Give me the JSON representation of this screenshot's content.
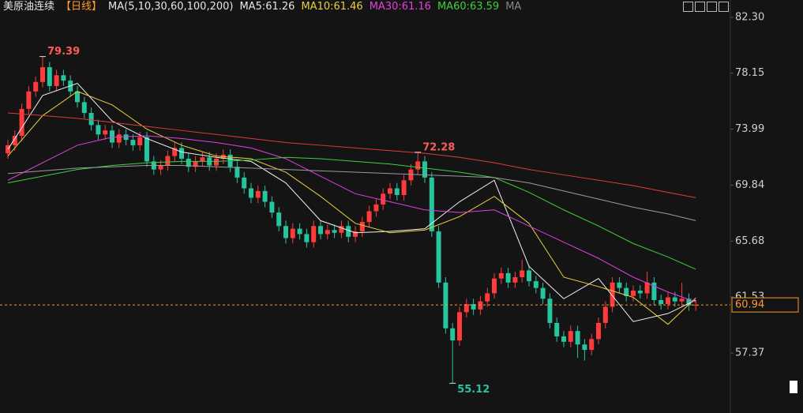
{
  "chart_data": {
    "type": "candlestick",
    "header": [
      "美原油连续",
      "【日线】",
      "MA(5,10,30,60,100,200)",
      "MA5:61.26",
      "MA10:61.46",
      "MA30:61.16",
      "MA60:63.59",
      "MA"
    ],
    "header_colors": [
      "#e6e6e6",
      "#ff9a2e",
      "#e6e6e6",
      "#e6e6e6",
      "#e8d23a",
      "#e040e0",
      "#3ecf3e",
      "#888888"
    ],
    "ylim": [
      52.91,
      83.59
    ],
    "yticks": [
      {
        "value": 82.3,
        "label": "82.30"
      },
      78.15,
      73.99,
      69.84,
      65.68,
      61.53,
      57.37
    ],
    "up_color": "#ff3b3b",
    "down_color": "#27c4a0",
    "open": [
      72.2,
      72.8,
      73.5,
      75.5,
      76.8,
      77.5,
      78.6,
      77.2,
      78.0,
      77.6,
      76.8,
      76.0,
      75.2,
      74.3,
      73.6,
      73.9,
      73.0,
      73.6,
      73.2,
      72.8,
      73.4,
      71.6,
      71.0,
      71.3,
      72.0,
      72.6,
      71.8,
      71.2,
      71.6,
      71.9,
      71.3,
      71.8,
      72.1,
      71.2,
      70.4,
      69.6,
      68.9,
      69.4,
      68.6,
      67.8,
      66.8,
      65.9,
      66.6,
      66.2,
      65.6,
      66.8,
      66.2,
      66.5,
      66.3,
      66.8,
      66.0,
      66.4,
      67.1,
      67.9,
      68.4,
      69.2,
      69.6,
      69.1,
      70.2,
      71.0,
      71.6,
      70.4,
      66.4,
      62.6,
      59.2,
      58.3,
      60.4,
      61.0,
      60.6,
      61.2,
      61.8,
      62.9,
      63.3,
      62.6,
      63.0,
      63.5,
      62.7,
      62.2,
      61.4,
      59.6,
      58.6,
      58.2,
      59.0,
      58.0,
      57.6,
      58.4,
      59.6,
      60.8,
      62.6,
      62.2,
      61.6,
      62.0,
      61.8,
      62.6,
      61.3,
      61.0,
      61.5,
      61.2,
      61.4,
      60.9
    ],
    "high": [
      73.2,
      73.9,
      75.9,
      77.2,
      77.9,
      79.39,
      79.0,
      78.4,
      78.4,
      78.0,
      77.2,
      76.4,
      75.6,
      74.7,
      74.3,
      74.3,
      74.0,
      74.0,
      73.6,
      73.8,
      73.8,
      72.0,
      71.7,
      72.4,
      73.0,
      73.0,
      72.2,
      72.0,
      72.3,
      72.3,
      72.2,
      72.5,
      72.5,
      71.6,
      70.8,
      70.0,
      69.8,
      69.8,
      69.0,
      68.2,
      67.2,
      67.0,
      67.0,
      66.6,
      67.2,
      67.2,
      66.9,
      66.9,
      67.2,
      67.2,
      66.8,
      67.5,
      68.3,
      68.8,
      69.6,
      70.0,
      70.0,
      70.6,
      71.4,
      72.28,
      72.0,
      70.8,
      66.8,
      63.0,
      59.6,
      60.8,
      61.4,
      61.4,
      61.6,
      62.2,
      63.3,
      63.7,
      63.7,
      63.4,
      64.3,
      63.9,
      63.1,
      62.6,
      61.8,
      60.0,
      59.0,
      59.4,
      59.4,
      58.4,
      58.8,
      60.0,
      61.2,
      63.0,
      63.0,
      62.6,
      62.4,
      62.4,
      63.4,
      63.0,
      61.7,
      61.9,
      61.9,
      62.6,
      61.8,
      61.3
    ],
    "low": [
      71.8,
      72.4,
      73.1,
      75.1,
      76.4,
      77.1,
      76.8,
      76.8,
      77.2,
      76.4,
      75.6,
      74.8,
      73.9,
      73.2,
      73.2,
      72.6,
      72.6,
      72.8,
      72.4,
      72.4,
      71.2,
      70.6,
      70.6,
      70.9,
      71.6,
      71.4,
      70.8,
      70.8,
      71.2,
      70.9,
      70.9,
      71.4,
      70.8,
      70.0,
      69.2,
      68.5,
      68.5,
      68.2,
      67.4,
      66.4,
      65.5,
      65.5,
      65.8,
      65.2,
      65.2,
      65.8,
      65.8,
      65.9,
      65.9,
      65.6,
      65.6,
      66.0,
      66.7,
      67.5,
      68.0,
      68.8,
      68.7,
      68.7,
      69.8,
      70.6,
      70.0,
      66.0,
      62.2,
      58.8,
      55.12,
      57.9,
      60.0,
      60.2,
      60.2,
      60.8,
      61.4,
      62.5,
      62.2,
      62.2,
      62.6,
      62.3,
      61.8,
      61.0,
      59.2,
      58.2,
      57.8,
      57.8,
      57.0,
      56.8,
      57.2,
      58.0,
      59.2,
      60.4,
      61.8,
      61.2,
      61.2,
      61.4,
      61.4,
      60.9,
      60.6,
      60.6,
      60.8,
      60.8,
      60.5,
      60.5
    ],
    "close": [
      72.8,
      73.5,
      75.5,
      76.8,
      77.5,
      78.6,
      77.2,
      78.0,
      77.6,
      76.8,
      76.0,
      75.2,
      74.3,
      73.6,
      73.9,
      73.0,
      73.6,
      73.2,
      72.8,
      73.4,
      71.6,
      71.0,
      71.3,
      72.0,
      72.6,
      71.8,
      71.2,
      71.6,
      71.9,
      71.3,
      71.8,
      72.1,
      71.2,
      70.4,
      69.6,
      68.9,
      69.4,
      68.6,
      67.8,
      66.8,
      65.9,
      66.6,
      66.2,
      65.6,
      66.8,
      66.2,
      66.5,
      66.3,
      66.8,
      66.0,
      66.4,
      67.1,
      67.9,
      68.4,
      69.2,
      69.6,
      69.1,
      70.2,
      71.0,
      71.6,
      70.4,
      66.4,
      62.6,
      59.2,
      58.3,
      60.4,
      61.0,
      60.6,
      61.2,
      61.8,
      62.9,
      63.3,
      62.6,
      63.0,
      63.5,
      62.7,
      62.2,
      61.4,
      59.6,
      58.6,
      58.2,
      59.0,
      58.0,
      57.6,
      58.4,
      59.6,
      60.8,
      62.6,
      62.2,
      61.6,
      62.0,
      61.8,
      62.6,
      61.3,
      61.0,
      61.5,
      61.2,
      61.4,
      60.9,
      60.94
    ],
    "ma_x": [
      0,
      5,
      10,
      15,
      20,
      25,
      30,
      35,
      40,
      45,
      50,
      55,
      60,
      65,
      70,
      75,
      80,
      85,
      90,
      95,
      99
    ],
    "series": [
      {
        "color": "#f0f0f0",
        "values": [
          72.5,
          76.5,
          77.4,
          74.6,
          73.3,
          72.3,
          71.9,
          71.6,
          70.0,
          67.2,
          66.3,
          66.4,
          66.6,
          68.6,
          70.2,
          63.8,
          61.4,
          62.9,
          59.7,
          60.3,
          61.3
        ]
      },
      {
        "color": "#e8d23a",
        "values": [
          72.0,
          75.0,
          76.8,
          75.8,
          74.0,
          72.8,
          72.0,
          71.8,
          70.8,
          69.0,
          67.0,
          66.3,
          66.5,
          67.5,
          69.0,
          67.0,
          63.0,
          62.3,
          61.5,
          59.5,
          61.46
        ]
      },
      {
        "color": "#e040e0",
        "values": [
          70.2,
          71.5,
          72.8,
          73.4,
          73.5,
          73.3,
          73.0,
          72.6,
          71.8,
          70.5,
          69.2,
          68.6,
          68.0,
          67.8,
          68.0,
          66.8,
          65.6,
          64.4,
          63.0,
          61.9,
          61.16
        ]
      },
      {
        "color": "#3ecf3e",
        "values": [
          70.0,
          70.5,
          71.0,
          71.3,
          71.5,
          71.6,
          71.6,
          71.7,
          71.9,
          71.8,
          71.6,
          71.4,
          71.1,
          70.8,
          70.4,
          69.3,
          68.0,
          66.8,
          65.5,
          64.5,
          63.59
        ]
      },
      {
        "color": "#9a9a9a",
        "values": [
          70.7,
          70.9,
          71.1,
          71.2,
          71.3,
          71.3,
          71.2,
          71.1,
          71.0,
          70.9,
          70.8,
          70.7,
          70.6,
          70.5,
          70.4,
          70.0,
          69.4,
          68.8,
          68.2,
          67.7,
          67.2
        ]
      },
      {
        "color": "#e03a3a",
        "values": [
          75.2,
          75.0,
          74.8,
          74.5,
          74.2,
          73.9,
          73.6,
          73.3,
          73.0,
          72.8,
          72.6,
          72.4,
          72.2,
          71.9,
          71.5,
          71.0,
          70.6,
          70.2,
          69.8,
          69.3,
          68.9
        ]
      }
    ],
    "annotations": [
      79.39,
      72.28,
      55.12
    ],
    "annotation_colors": [
      "#ff5a5a",
      "#ff5a5a",
      "#27c4a0"
    ],
    "last_price": 60.94,
    "last_price_color": "#ff9a2e"
  }
}
